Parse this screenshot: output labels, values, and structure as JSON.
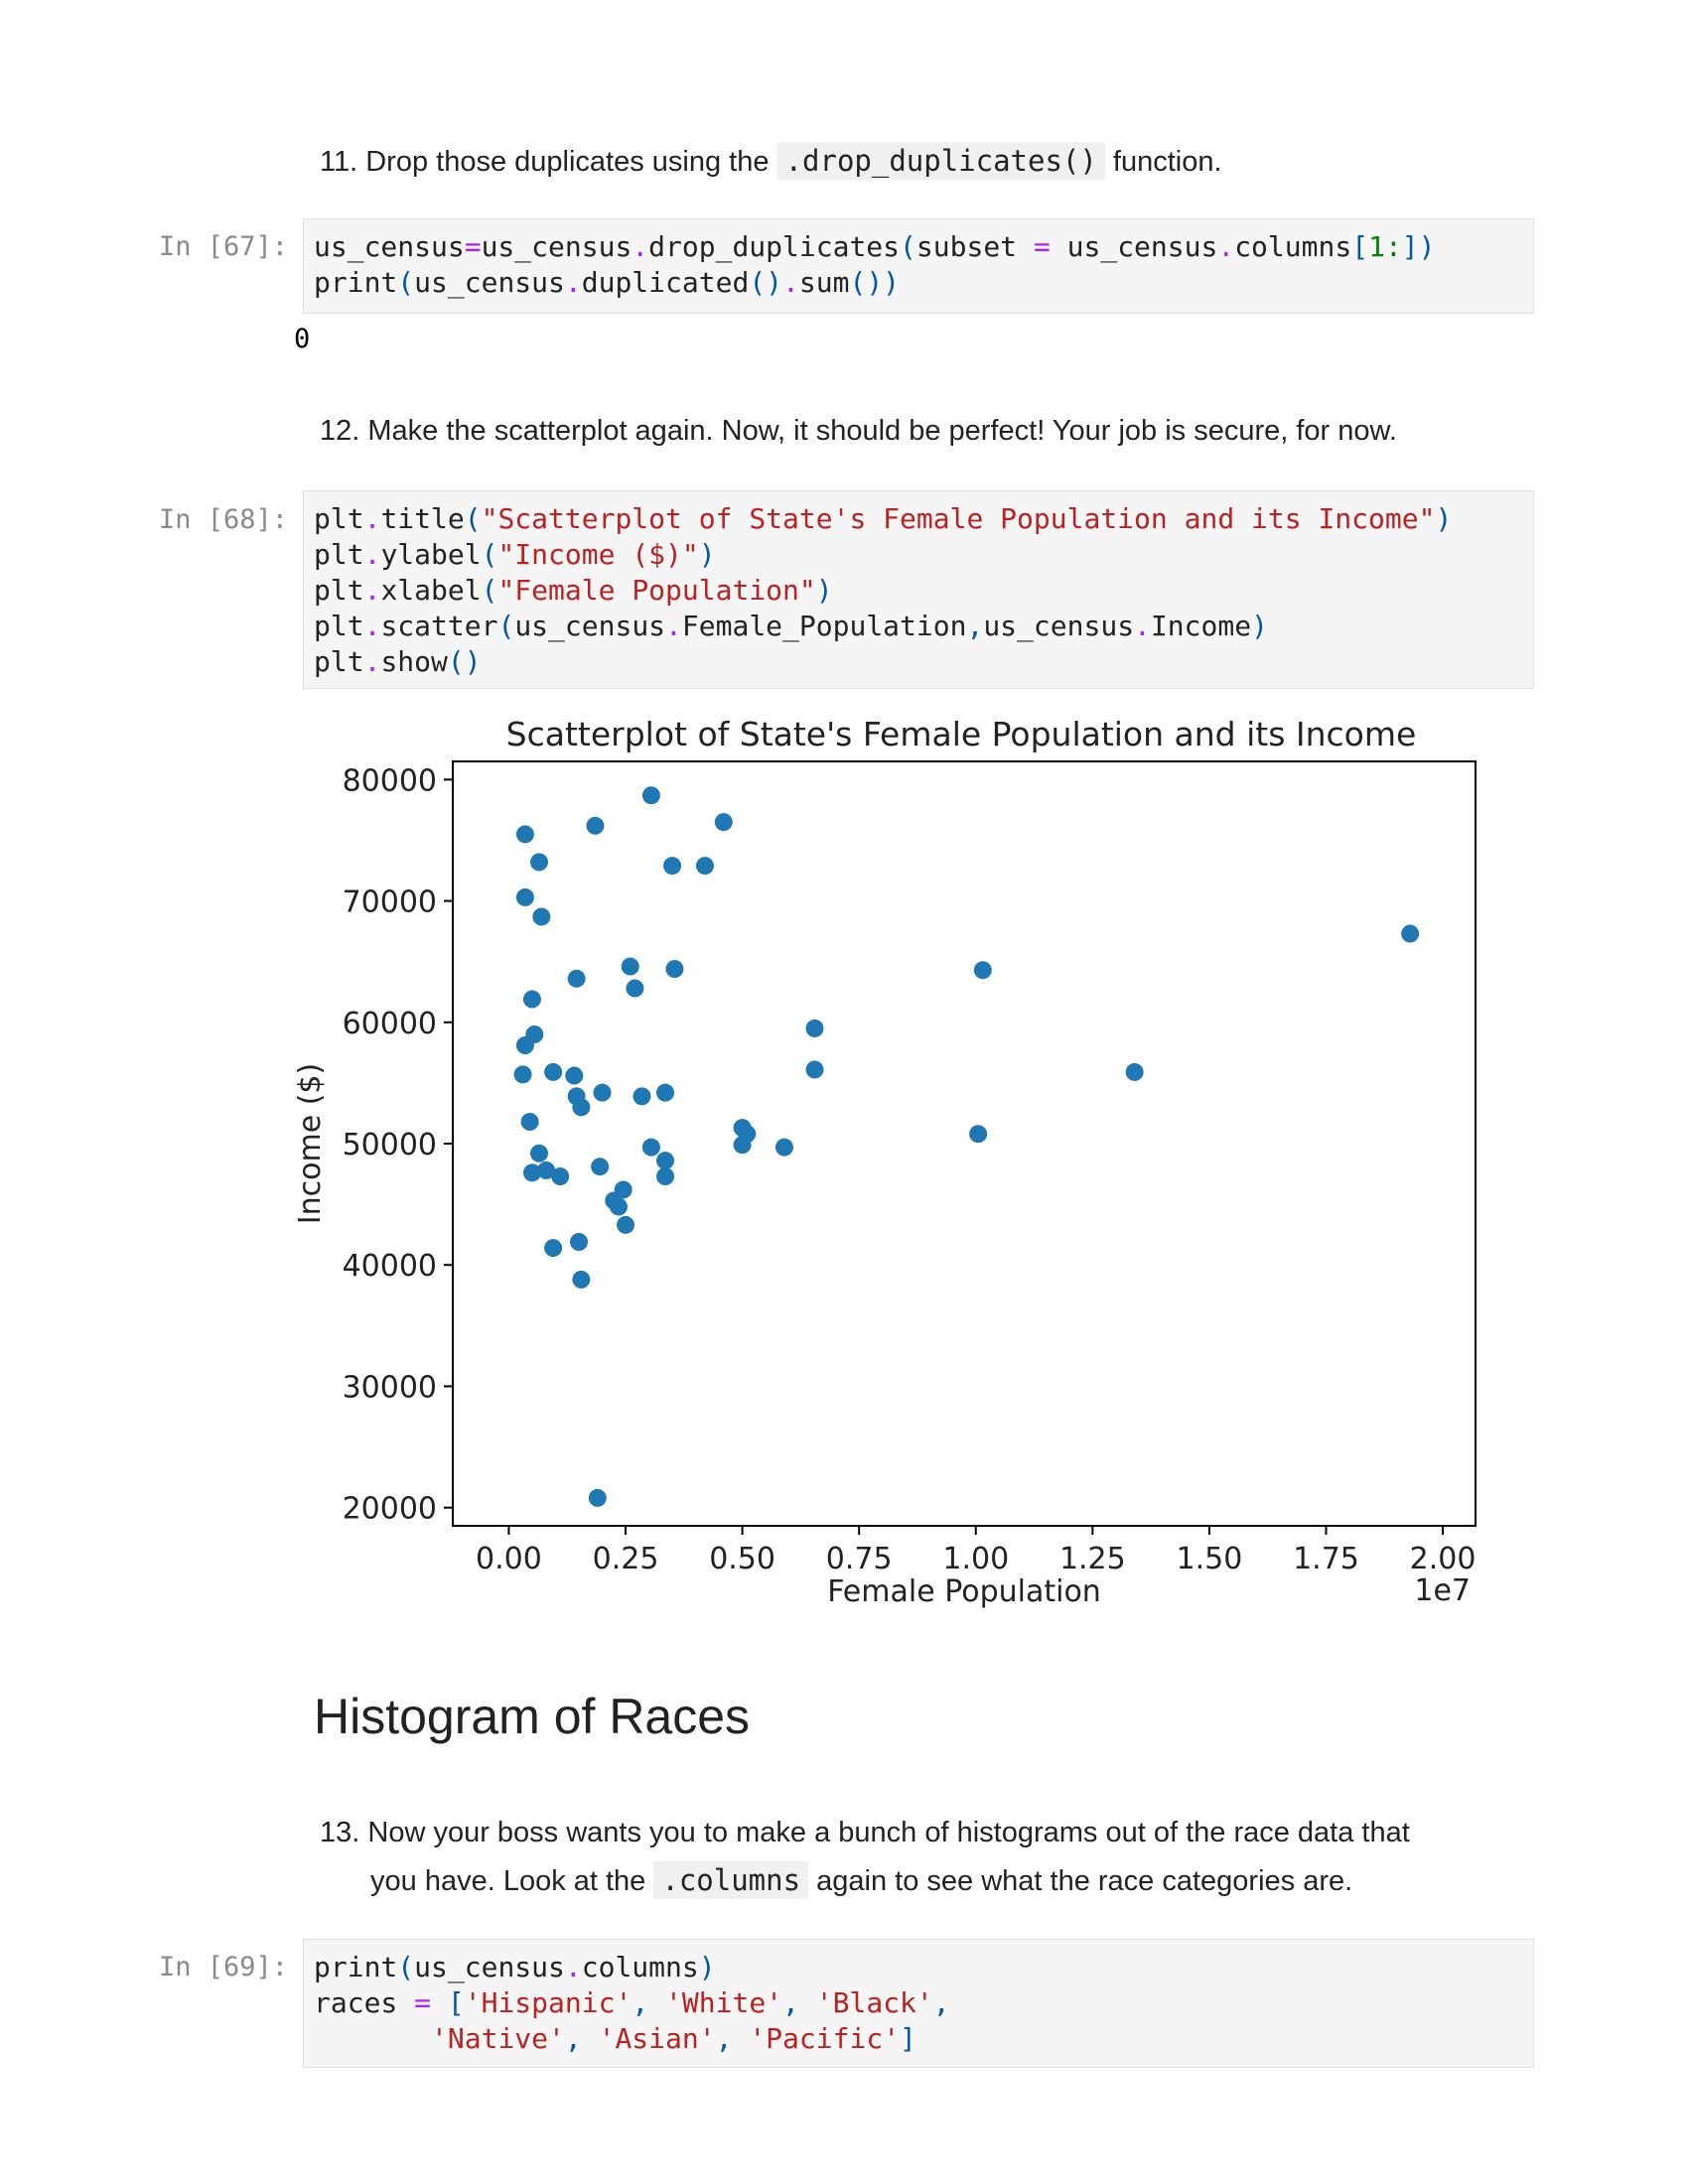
{
  "step11": {
    "number": "11.",
    "before": "Drop those duplicates using the",
    "code": ".drop_duplicates()",
    "after": "function."
  },
  "cell67": {
    "prompt": "In [67]:",
    "output": "0"
  },
  "step12": {
    "text": "12. Make the scatterplot again. Now, it should be perfect! Your job is secure, for now."
  },
  "cell68": {
    "prompt": "In [68]:"
  },
  "heading": "Histogram of Races",
  "step13": {
    "line1": "13. Now your boss wants you to make a bunch of histograms out of the race data that",
    "before": "you have. Look at the",
    "code": ".columns",
    "after": "again to see what the race categories are."
  },
  "cell69": {
    "prompt": "In [69]:"
  },
  "chart_data": {
    "type": "scatter",
    "title": "Scatterplot of State's Female Population and its Income",
    "xlabel": "Female Population",
    "ylabel": "Income ($)",
    "x_offset_label": "1e7",
    "xlim": [
      -0.12,
      2.07
    ],
    "ylim": [
      18500,
      81500
    ],
    "x_ticks": [
      "0.00",
      "0.25",
      "0.50",
      "0.75",
      "1.00",
      "1.25",
      "1.50",
      "1.75",
      "2.00"
    ],
    "y_ticks": [
      "20000",
      "30000",
      "40000",
      "50000",
      "60000",
      "70000",
      "80000"
    ],
    "color": "#1f77b4",
    "points": [
      [
        0.035,
        75500
      ],
      [
        0.185,
        76200
      ],
      [
        0.305,
        78700
      ],
      [
        0.46,
        76500
      ],
      [
        0.065,
        73200
      ],
      [
        0.35,
        72900
      ],
      [
        0.42,
        72900
      ],
      [
        0.035,
        70300
      ],
      [
        0.07,
        68700
      ],
      [
        1.93,
        67300
      ],
      [
        1.015,
        64300
      ],
      [
        0.26,
        64600
      ],
      [
        0.355,
        64400
      ],
      [
        0.145,
        63600
      ],
      [
        0.27,
        62800
      ],
      [
        0.05,
        61900
      ],
      [
        0.655,
        59500
      ],
      [
        0.055,
        59000
      ],
      [
        0.035,
        58100
      ],
      [
        0.03,
        55700
      ],
      [
        0.095,
        55900
      ],
      [
        0.14,
        55600
      ],
      [
        0.655,
        56100
      ],
      [
        1.34,
        55900
      ],
      [
        0.2,
        54200
      ],
      [
        0.285,
        53900
      ],
      [
        0.335,
        54200
      ],
      [
        0.145,
        53900
      ],
      [
        0.155,
        53000
      ],
      [
        0.045,
        51800
      ],
      [
        0.5,
        51300
      ],
      [
        0.51,
        50800
      ],
      [
        0.5,
        49900
      ],
      [
        0.59,
        49700
      ],
      [
        1.005,
        50800
      ],
      [
        0.305,
        49700
      ],
      [
        0.065,
        49200
      ],
      [
        0.335,
        48600
      ],
      [
        0.195,
        48100
      ],
      [
        0.05,
        47600
      ],
      [
        0.08,
        47800
      ],
      [
        0.11,
        47300
      ],
      [
        0.335,
        47300
      ],
      [
        0.245,
        46200
      ],
      [
        0.225,
        45300
      ],
      [
        0.235,
        44800
      ],
      [
        0.25,
        43300
      ],
      [
        0.15,
        41900
      ],
      [
        0.095,
        41400
      ],
      [
        0.155,
        38800
      ],
      [
        0.19,
        20800
      ]
    ]
  }
}
